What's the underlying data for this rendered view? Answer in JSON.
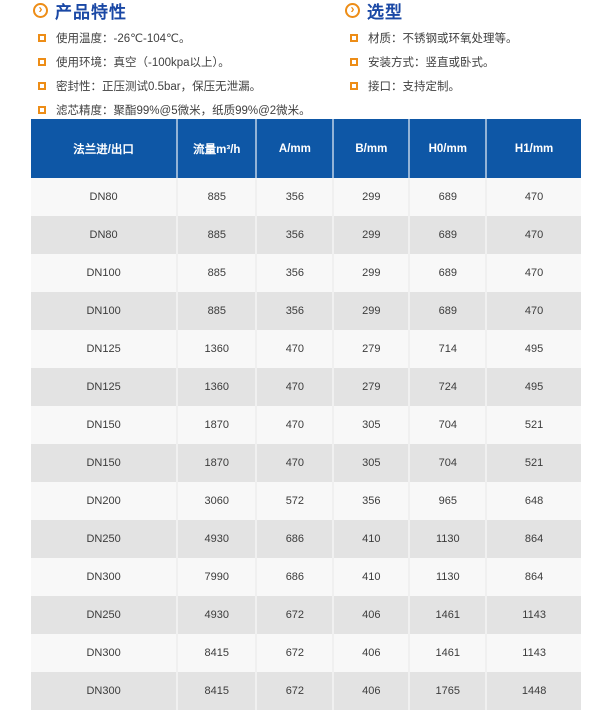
{
  "colors": {
    "accent_orange": "#ED8D17",
    "title_blue": "#1A48A5",
    "table_header_blue": "#0E57A6",
    "row_light": "#F8F8F8",
    "row_dark": "#E3E3E3"
  },
  "features": {
    "title": "产品特性",
    "items": [
      "使用温度：-26℃-104℃。",
      "使用环境：真空（-100kpa以上）。",
      "密封性：正压测试0.5bar，保压无泄漏。",
      "滤芯精度：聚酯99%@5微米，纸质99%@2微米。"
    ]
  },
  "selection": {
    "title": "选型",
    "items": [
      "材质：不锈钢或环氧处理等。",
      "安装方式：竖直或卧式。",
      "接口：支持定制。"
    ]
  },
  "spec_table": {
    "headers": [
      "法兰进/出口",
      "流量m³/h",
      "A/mm",
      "B/mm",
      "H0/mm",
      "H1/mm"
    ],
    "rows": [
      [
        "DN80",
        "885",
        "356",
        "299",
        "689",
        "470"
      ],
      [
        "DN80",
        "885",
        "356",
        "299",
        "689",
        "470"
      ],
      [
        "DN100",
        "885",
        "356",
        "299",
        "689",
        "470"
      ],
      [
        "DN100",
        "885",
        "356",
        "299",
        "689",
        "470"
      ],
      [
        "DN125",
        "1360",
        "470",
        "279",
        "714",
        "495"
      ],
      [
        "DN125",
        "1360",
        "470",
        "279",
        "724",
        "495"
      ],
      [
        "DN150",
        "1870",
        "470",
        "305",
        "704",
        "521"
      ],
      [
        "DN150",
        "1870",
        "470",
        "305",
        "704",
        "521"
      ],
      [
        "DN200",
        "3060",
        "572",
        "356",
        "965",
        "648"
      ],
      [
        "DN250",
        "4930",
        "686",
        "410",
        "1130",
        "864"
      ],
      [
        "DN300",
        "7990",
        "686",
        "410",
        "1130",
        "864"
      ],
      [
        "DN250",
        "4930",
        "672",
        "406",
        "1461",
        "1143"
      ],
      [
        "DN300",
        "8415",
        "672",
        "406",
        "1461",
        "1143"
      ],
      [
        "DN300",
        "8415",
        "672",
        "406",
        "1765",
        "1448"
      ]
    ]
  }
}
